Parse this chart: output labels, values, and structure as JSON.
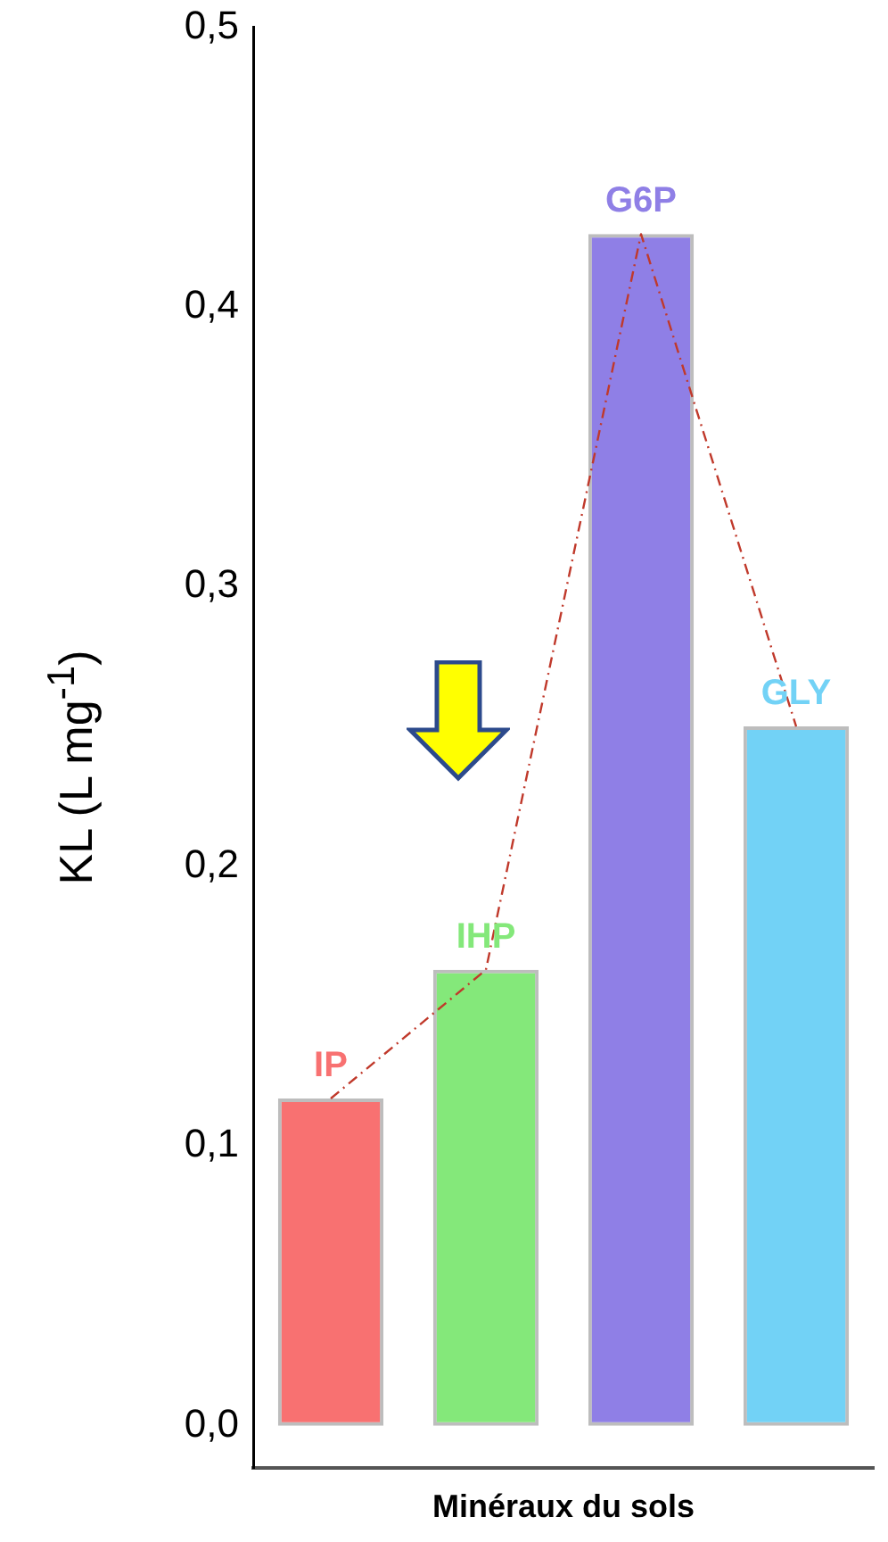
{
  "chart_data": {
    "type": "bar",
    "xlabel": "Minéraux du sols",
    "ylabel": "KL (L mg$^{-1}$)",
    "categories": [
      "IP",
      "IHP",
      "G6P",
      "GLY"
    ],
    "series": [
      {
        "colors": [
          "#f87171",
          "#84e87a",
          "#8f7fe6",
          "#72d2f6"
        ],
        "values": [
          0.117,
          0.163,
          0.426,
          0.25
        ]
      },
      {
        "type": "line",
        "color": "#c0392b",
        "line_style": "dashed",
        "marker": "none",
        "values": [
          0.117,
          0.163,
          0.426,
          0.25
        ]
      }
    ],
    "ylim": [
      -0.015,
      0.5
    ],
    "yticks": [
      {
        "value": 0,
        "label": "0,0"
      },
      {
        "value": 0.1,
        "label": "0,1"
      },
      {
        "value": 0.2,
        "label": "0,2"
      },
      {
        "value": 0.3,
        "label": "0,3"
      },
      {
        "value": 0.4,
        "label": "0,4"
      },
      {
        "value": 0.5,
        "label": "0,5"
      }
    ],
    "tick_labels": "y",
    "grid": false,
    "legend": false
  }
}
